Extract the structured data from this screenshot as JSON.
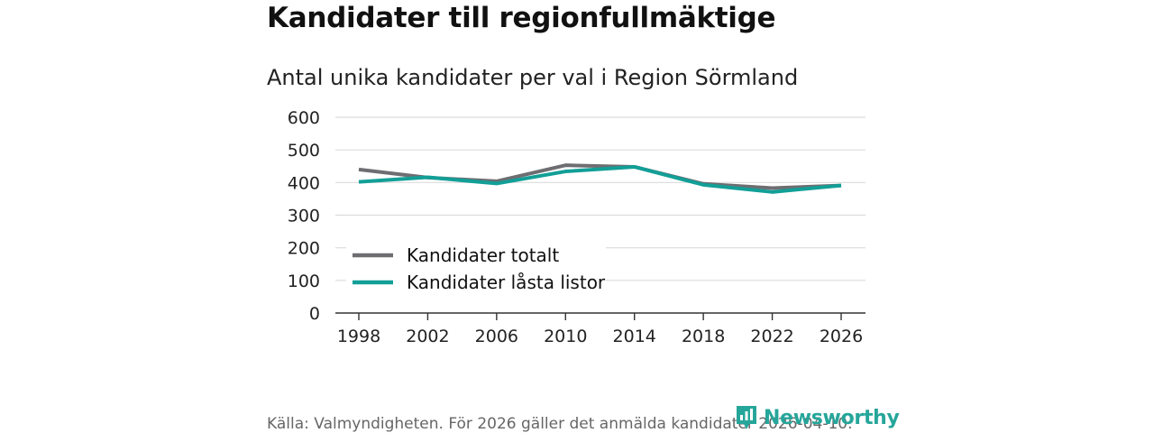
{
  "header": {
    "title": "Kandidater till regionfullmäktige",
    "subtitle": "Antal unika kandidater per val i Region Sörmland"
  },
  "chart_data": {
    "type": "line",
    "x": [
      "1998",
      "2002",
      "2006",
      "2010",
      "2014",
      "2018",
      "2022",
      "2026"
    ],
    "series": [
      {
        "name": "Kandidater totalt",
        "color": "#6e6d71",
        "values": [
          440,
          415,
          404,
          453,
          448,
          396,
          383,
          391
        ]
      },
      {
        "name": "Kandidater låsta listor",
        "color": "#129f97",
        "values": [
          402,
          416,
          397,
          434,
          448,
          393,
          371,
          391
        ]
      }
    ],
    "yticks": [
      "0",
      "100",
      "200",
      "300",
      "400",
      "500",
      "600"
    ],
    "ylim": [
      0,
      600
    ],
    "grid": true,
    "legend_position": "bottom-left",
    "title": "Kandidater till regionfullmäktige",
    "xlabel": "",
    "ylabel": ""
  },
  "footer": {
    "source": "Källa: Valmyndigheten. För 2026 gäller det anmälda kandidater 2026-04-10.",
    "logo_text": "Newsworthy",
    "logo_icon": "bar-chart-pin-icon",
    "logo_color": "#26a69a"
  }
}
